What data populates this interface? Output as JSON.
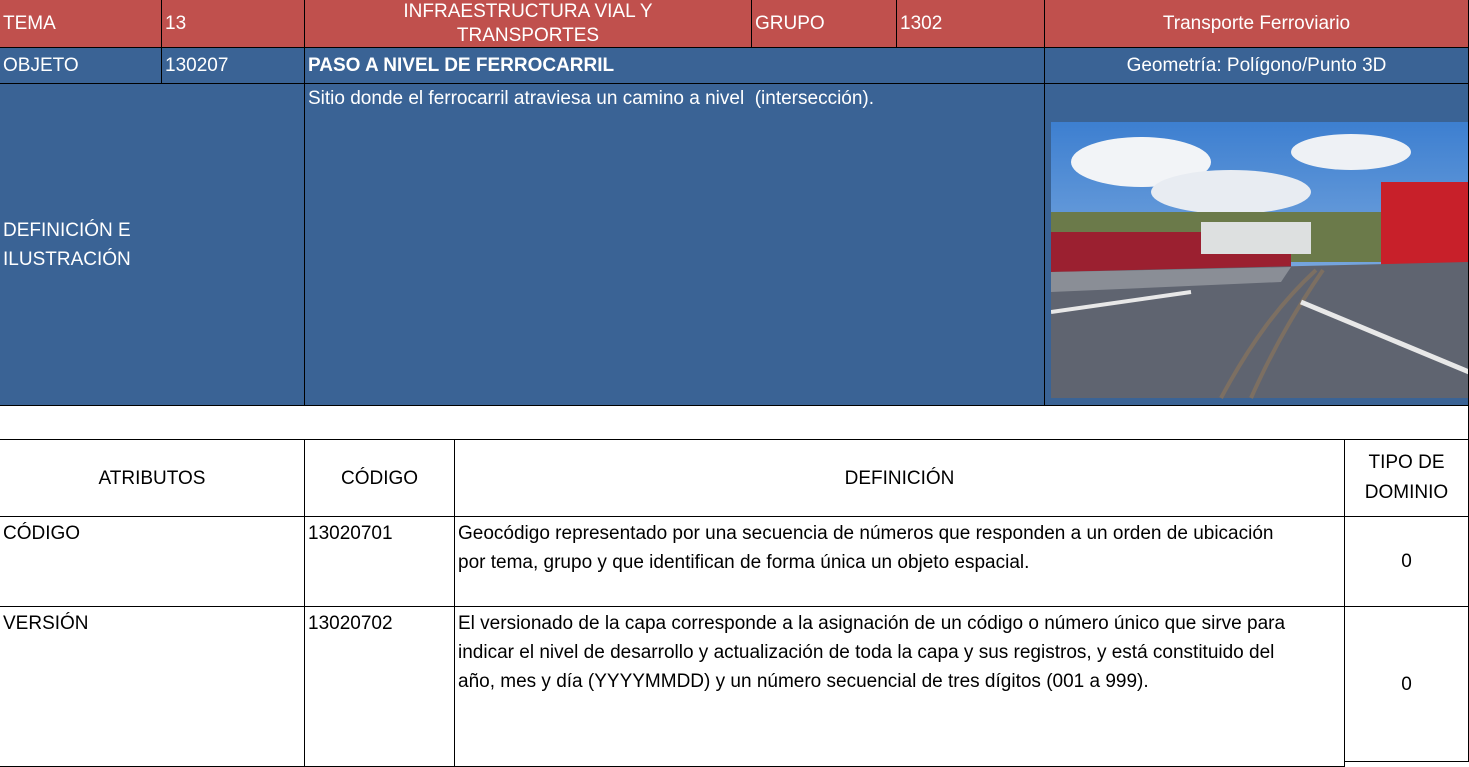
{
  "header": {
    "tema_label": "TEMA",
    "tema": "13",
    "tema_name": "INFRAESTRUCTURA VIAL Y TRANSPORTES",
    "grupo_label": "GRUPO",
    "grupo": "1302",
    "grupo_name": "Transporte Ferroviario"
  },
  "object": {
    "label": "OBJETO",
    "code": "130207",
    "name": "PASO A NIVEL DE FERROCARRIL",
    "geometry": "Geometría: Polígono/Punto 3D"
  },
  "definition": {
    "label": "DEFINICIÓN E ILUSTRACIÓN",
    "text": "Sitio donde el ferrocarril atraviesa un camino a nivel  (intersección)."
  },
  "table": {
    "columns": [
      "ATRIBUTOS",
      "CÓDIGO",
      "DEFINICIÓN",
      "TIPO DE DOMINIO"
    ],
    "rows": [
      [
        "CÓDIGO",
        "13020701",
        "Geocódigo representado por una secuencia de números que responden a un orden de ubicación por tema, grupo y que identifican de forma única un objeto espacial.",
        "0"
      ],
      [
        "VERSIÓN",
        "13020702",
        "El versionado de la capa corresponde a la asignación de un código o número único que sirve para indicar el nivel de desarrollo y actualización de toda la capa y sus registros, y está constituido del año, mes y día (YYYYMMDD) y un número secuencial de tres dígitos (001 a 999).",
        "0"
      ]
    ]
  }
}
